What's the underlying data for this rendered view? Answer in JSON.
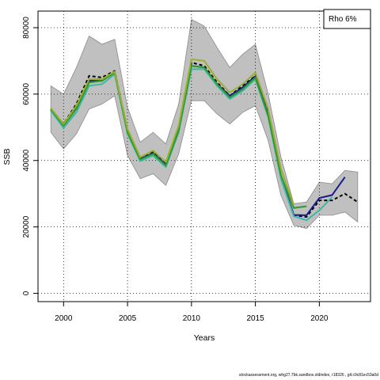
{
  "chart_data": {
    "type": "line",
    "xlabel": "Years",
    "ylabel": "SSB",
    "legend_text": "Rho 6%",
    "legend_position": "top-right",
    "footer": "stockassessment.org, whg27.7bk.sandbox.oldindex, r18326 , git:c9c81ec53a0d",
    "xlim": [
      1998,
      2024
    ],
    "ylim": [
      -2500,
      85000
    ],
    "x_ticks": [
      2000,
      2005,
      2010,
      2015,
      2020
    ],
    "y_ticks": [
      0,
      20000,
      40000,
      60000,
      80000
    ],
    "grid": true,
    "band": {
      "x": [
        1999,
        2000,
        2001,
        2002,
        2003,
        2004,
        2005,
        2006,
        2007,
        2008,
        2009,
        2010,
        2011,
        2012,
        2013,
        2014,
        2015,
        2016,
        2017,
        2018,
        2019,
        2020,
        2021,
        2022,
        2023
      ],
      "upper": [
        62500,
        60000,
        68000,
        77500,
        75000,
        76500,
        56000,
        45500,
        48500,
        45000,
        57000,
        82500,
        80500,
        74000,
        68000,
        72000,
        75000,
        60000,
        41000,
        27000,
        27500,
        33500,
        33000,
        37000,
        36500
      ],
      "lower": [
        48500,
        43500,
        48000,
        55500,
        57000,
        59500,
        41500,
        34500,
        36000,
        32500,
        42000,
        58000,
        58000,
        54000,
        51000,
        54500,
        56500,
        46000,
        29500,
        20500,
        19500,
        23500,
        23500,
        24500,
        21500
      ]
    },
    "series": [
      {
        "color": "#000000",
        "dashed": true,
        "x": [
          1999,
          2000,
          2001,
          2002,
          2003,
          2004,
          2005,
          2006,
          2007,
          2008,
          2009,
          2010,
          2011,
          2012,
          2013,
          2014,
          2015,
          2016,
          2017,
          2018,
          2019,
          2020,
          2021,
          2022,
          2023
        ],
        "values": [
          55500,
          51000,
          57000,
          65500,
          65000,
          67000,
          49000,
          40500,
          42500,
          39000,
          49500,
          69500,
          68500,
          63500,
          59500,
          62500,
          65500,
          54000,
          35000,
          23500,
          23000,
          28000,
          28000,
          30000,
          27500
        ]
      },
      {
        "color": "#1a1a8c",
        "dashed": false,
        "x": [
          1999,
          2000,
          2001,
          2002,
          2003,
          2004,
          2005,
          2006,
          2007,
          2008,
          2009,
          2010,
          2011,
          2012,
          2013,
          2014,
          2015,
          2016,
          2017,
          2018,
          2019,
          2020,
          2021,
          2022
        ],
        "values": [
          55300,
          50600,
          56000,
          64000,
          64000,
          66800,
          48700,
          40500,
          42200,
          38800,
          49200,
          68500,
          68000,
          63000,
          59500,
          62000,
          65400,
          53800,
          35000,
          23600,
          23500,
          28700,
          29600,
          35000
        ]
      },
      {
        "color": "#3fb7a6",
        "dashed": false,
        "x": [
          1999,
          2000,
          2001,
          2002,
          2003,
          2004,
          2005,
          2006,
          2007,
          2008,
          2009,
          2010,
          2011,
          2012,
          2013,
          2014,
          2015,
          2016,
          2017,
          2018,
          2019,
          2020,
          2021
        ],
        "values": [
          55000,
          49800,
          54500,
          62500,
          63000,
          66000,
          48000,
          39800,
          41500,
          38000,
          48500,
          67500,
          67500,
          62500,
          58500,
          61000,
          64500,
          53000,
          34500,
          23200,
          22000,
          25000,
          29000
        ]
      },
      {
        "color": "#2e9a2e",
        "dashed": false,
        "x": [
          1999,
          2000,
          2001,
          2002,
          2003,
          2004,
          2005,
          2006,
          2007,
          2008,
          2009,
          2010,
          2011,
          2012,
          2013,
          2014,
          2015,
          2016,
          2017,
          2018,
          2019
        ],
        "values": [
          55500,
          50500,
          55500,
          63500,
          64000,
          66500,
          48500,
          40300,
          42000,
          38500,
          49000,
          68500,
          68000,
          63000,
          59000,
          61500,
          65000,
          53500,
          35500,
          25700,
          26200
        ]
      },
      {
        "color": "#9ab02e",
        "dashed": false,
        "x": [
          1999,
          2000,
          2001,
          2002,
          2003,
          2004,
          2005,
          2006,
          2007,
          2008,
          2009,
          2010,
          2011,
          2012,
          2013,
          2014,
          2015,
          2016,
          2017,
          2018
        ],
        "values": [
          55800,
          51000,
          56500,
          64500,
          64500,
          66800,
          49500,
          41000,
          43000,
          39500,
          50500,
          70500,
          70000,
          64500,
          60500,
          63000,
          66500,
          55500,
          37500,
          26500
        ]
      }
    ]
  }
}
